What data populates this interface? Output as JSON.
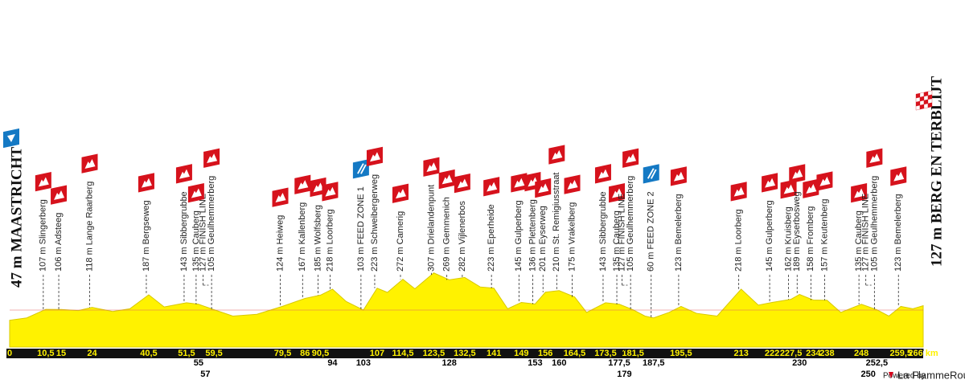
{
  "chart_data": {
    "type": "area",
    "start_label": "47 m MAASTRICHT",
    "finish_label": "127 m BERG EN TERBLIJT",
    "color": "#fff200",
    "xlim": [
      0,
      266
    ],
    "ylim": [
      -100,
      350
    ],
    "x": [
      0,
      5,
      10.5,
      15,
      20,
      24,
      30,
      35,
      40.5,
      45,
      51.5,
      55,
      59.5,
      65,
      72,
      79.5,
      86,
      90.5,
      94,
      98,
      103,
      107,
      110,
      114.5,
      118,
      123.5,
      128,
      132.5,
      137,
      141,
      145,
      149,
      153,
      156,
      160,
      164.5,
      168,
      173.5,
      177.5,
      181.5,
      185,
      187.5,
      192,
      195.5,
      200,
      206,
      213,
      218,
      222,
      227.5,
      230,
      234,
      238,
      242,
      248,
      252.5,
      256,
      259.5,
      263,
      266
    ],
    "values": [
      47,
      60,
      107,
      106,
      100,
      118,
      95,
      110,
      187,
      120,
      143,
      135,
      105,
      70,
      80,
      124,
      167,
      185,
      218,
      150,
      103,
      223,
      200,
      272,
      220,
      307,
      269,
      282,
      230,
      223,
      110,
      145,
      136,
      201,
      210,
      175,
      90,
      143,
      135,
      105,
      70,
      60,
      90,
      123,
      85,
      70,
      218,
      130,
      145,
      162,
      189,
      158,
      157,
      90,
      135,
      105,
      70,
      123,
      110,
      127
    ],
    "xticks": [
      0,
      {
        "value": 10.5,
        "label": "10,5"
      },
      15,
      24,
      {
        "value": 40.5,
        "label": "40,5"
      },
      {
        "value": 51.5,
        "label": "51,5"
      },
      {
        "value": 59.5,
        "label": "59,5"
      },
      {
        "value": 79.5,
        "label": "79,5"
      },
      86,
      {
        "value": 90.5,
        "label": "90,5"
      },
      107,
      {
        "value": 114.5,
        "label": "114,5"
      },
      {
        "value": 123.5,
        "label": "123,5"
      },
      {
        "value": 132.5,
        "label": "132,5"
      },
      141,
      149,
      156,
      {
        "value": 164.5,
        "label": "164,5"
      },
      {
        "value": 173.5,
        "label": "173,5"
      },
      {
        "value": 181.5,
        "label": "181,5"
      },
      {
        "value": 195.5,
        "label": "195,5"
      },
      213,
      222,
      {
        "value": 227.5,
        "label": "227,5"
      },
      234,
      238,
      248,
      {
        "value": 259.5,
        "label": "259,5"
      },
      {
        "value": 266,
        "label": "266 km"
      }
    ],
    "xticks_lower": [
      55,
      94,
      103,
      128,
      153,
      160,
      {
        "value": 177.5,
        "label": "177,5"
      },
      {
        "value": 187.5,
        "label": "187,5"
      },
      230,
      {
        "value": 252.5,
        "label": "252,5"
      }
    ],
    "xticks_lowest": [
      57,
      179,
      250
    ],
    "waypoints": [
      {
        "label": "107 m Slingerberg",
        "km": 10.5,
        "kind": "climb"
      },
      {
        "label": "106 m Adsteeg",
        "km": 15,
        "kind": "climb"
      },
      {
        "label": "118 m Lange Raarberg",
        "km": 24,
        "kind": "climb"
      },
      {
        "label": "187 m Bergseweg",
        "km": 40.5,
        "kind": "climb"
      },
      {
        "label": "127 m FINISH LINE",
        "km": 57,
        "kind": "finish"
      },
      {
        "label": "143 m Sibbergrubbe",
        "km": 51.5,
        "kind": "climb"
      },
      {
        "label": "135 m Cauberg",
        "km": 55,
        "kind": "climb"
      },
      {
        "label": "105 m Geulhemmerberg",
        "km": 59.5,
        "kind": "climb"
      },
      {
        "label": "124 m Heiweg",
        "km": 79.5,
        "kind": "climb"
      },
      {
        "label": "167 m Kallenberg",
        "km": 86,
        "kind": "climb"
      },
      {
        "label": "185 m Wolfsberg",
        "km": 90.5,
        "kind": "climb"
      },
      {
        "label": "218 m Loorberg",
        "km": 94,
        "kind": "climb"
      },
      {
        "label": "103 m FEED ZONE 1",
        "km": 103,
        "kind": "feed"
      },
      {
        "label": "223 m Schweibergerweg",
        "km": 107,
        "kind": "climb"
      },
      {
        "label": "272 m Camerig",
        "km": 114.5,
        "kind": "climb"
      },
      {
        "label": "307 m Drielandenpunt",
        "km": 123.5,
        "kind": "climb"
      },
      {
        "label": "269 m Gemmenich",
        "km": 128,
        "kind": "climb"
      },
      {
        "label": "282 m Vijlenerbos",
        "km": 132.5,
        "kind": "climb"
      },
      {
        "label": "223 m Eperheide",
        "km": 141,
        "kind": "climb"
      },
      {
        "label": "145 m Gulperberg",
        "km": 149,
        "kind": "climb"
      },
      {
        "label": "136 m Plettenberg",
        "km": 153,
        "kind": "climb"
      },
      {
        "label": "201 m Eyserweg",
        "km": 156,
        "kind": "climb"
      },
      {
        "label": "210 m St. Remigiusstraat",
        "km": 160,
        "kind": "climb"
      },
      {
        "label": "175 m Vrakelberg",
        "km": 164.5,
        "kind": "climb"
      },
      {
        "label": "143 m Sibbergrubbe",
        "km": 173.5,
        "kind": "climb"
      },
      {
        "label": "135 m Cauberg",
        "km": 177.5,
        "kind": "climb"
      },
      {
        "label": "127 m FINISH LINE",
        "km": 179,
        "kind": "finish"
      },
      {
        "label": "105 m Geulhemmerberg",
        "km": 181.5,
        "kind": "climb"
      },
      {
        "label": "60 m FEED ZONE 2",
        "km": 187.5,
        "kind": "feed"
      },
      {
        "label": "123 m Bemelerberg",
        "km": 195.5,
        "kind": "climb"
      },
      {
        "label": "218 m Loorberg",
        "km": 213,
        "kind": "climb"
      },
      {
        "label": "145 m Gulperberg",
        "km": 222,
        "kind": "climb"
      },
      {
        "label": "162 m Kruisberg",
        "km": 227.5,
        "kind": "climb"
      },
      {
        "label": "189 m Eyserbosweg",
        "km": 230,
        "kind": "climb"
      },
      {
        "label": "158 m Fromberg",
        "km": 234,
        "kind": "climb"
      },
      {
        "label": "157 m Keutenberg",
        "km": 238,
        "kind": "climb"
      },
      {
        "label": "135 m Cauberg",
        "km": 248,
        "kind": "climb"
      },
      {
        "label": "127 m FINISH LINE",
        "km": 250,
        "kind": "finish"
      },
      {
        "label": "105 m Geulhemmerberg",
        "km": 252.5,
        "kind": "climb"
      },
      {
        "label": "123 m Bemelerberg",
        "km": 259.5,
        "kind": "climb"
      }
    ],
    "footer": {
      "powered_by": "Powered by",
      "brand": "La FlammeRouge"
    }
  }
}
